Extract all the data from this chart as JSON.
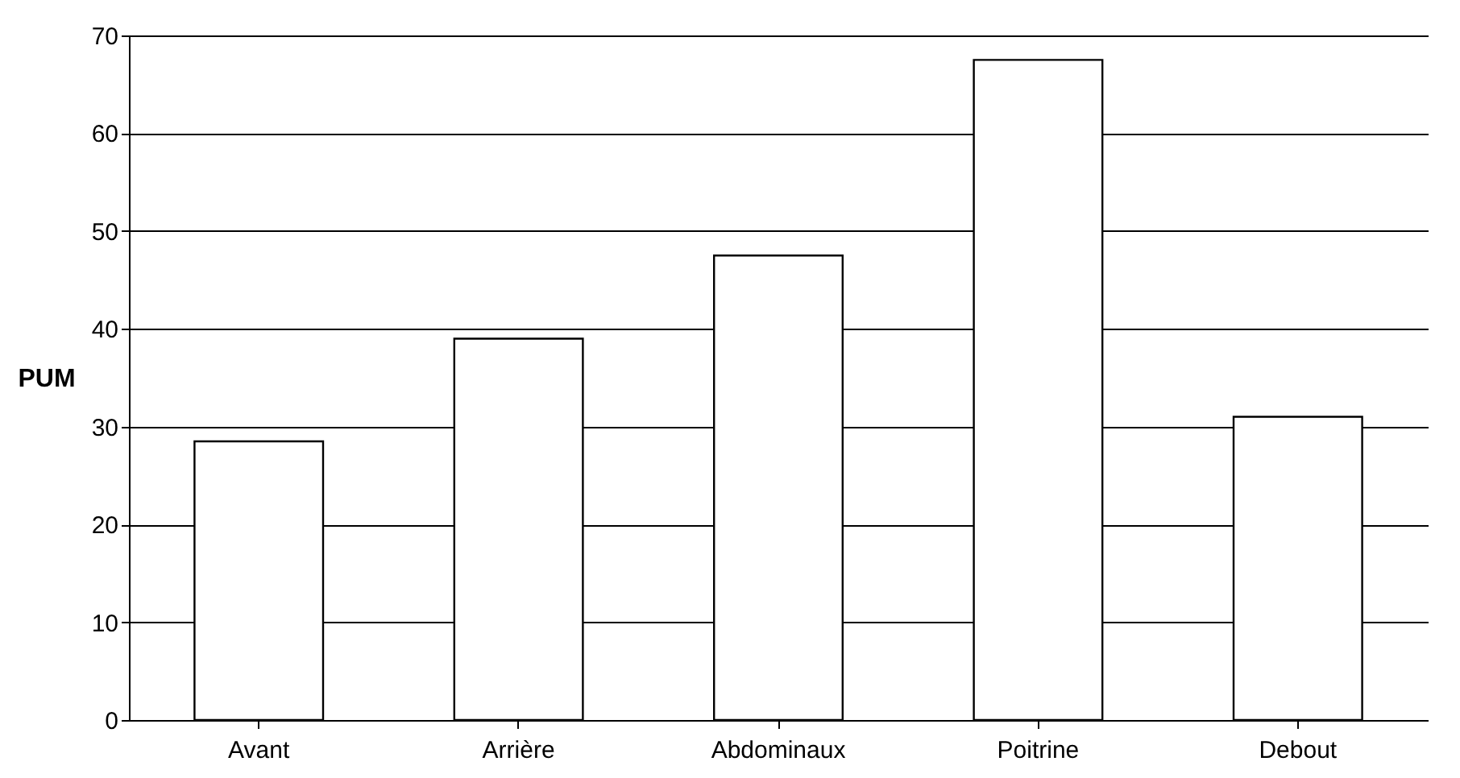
{
  "chart_data": {
    "type": "bar",
    "ylabel": "PUM",
    "categories": [
      "Avant",
      "Arrière",
      "Abdominaux",
      "Poitrine",
      "Debout"
    ],
    "values": [
      28.5,
      39,
      47.5,
      67.5,
      31
    ],
    "color": "#ffffff",
    "ylim": [
      0,
      70
    ],
    "yticks": [
      0,
      10,
      20,
      30,
      40,
      50,
      60,
      70
    ],
    "grid": "y"
  }
}
